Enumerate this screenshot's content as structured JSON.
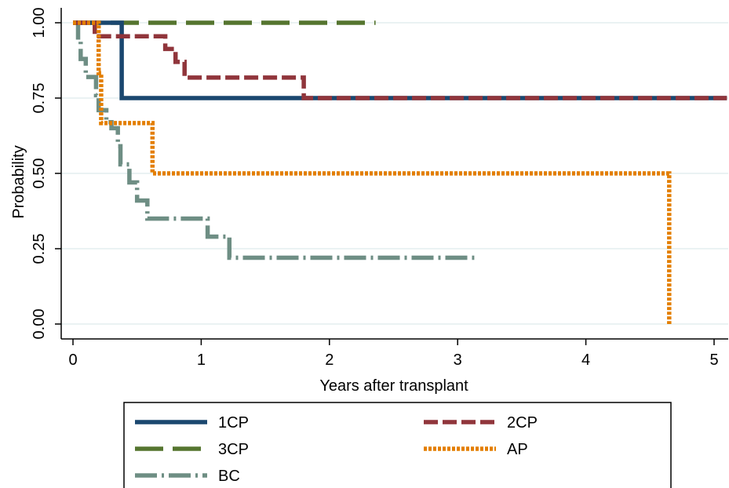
{
  "chart_data": {
    "type": "line",
    "subtype": "kaplan-meier step",
    "title": "",
    "xlabel": "Years after transplant",
    "ylabel": "Probability",
    "xlim": [
      0,
      5.1
    ],
    "ylim": [
      0,
      1
    ],
    "xticks": [
      0,
      1,
      2,
      3,
      4,
      5
    ],
    "yticks": [
      0.0,
      0.25,
      0.5,
      0.75,
      1.0
    ],
    "ytick_labels": [
      "0.00",
      "0.25",
      "0.50",
      "0.75",
      "1.00"
    ],
    "grid": "horizontal",
    "legend_position": "bottom",
    "series": [
      {
        "name": "1CP",
        "color": "#1a476f",
        "dash": "solid",
        "points": [
          [
            0,
            1.0
          ],
          [
            0.38,
            1.0
          ],
          [
            0.38,
            0.75
          ],
          [
            5.1,
            0.75
          ]
        ]
      },
      {
        "name": "2CP",
        "color": "#90353b",
        "dash": "dashed",
        "points": [
          [
            0,
            1.0
          ],
          [
            0.17,
            1.0
          ],
          [
            0.17,
            0.955
          ],
          [
            0.72,
            0.955
          ],
          [
            0.72,
            0.913
          ],
          [
            0.8,
            0.913
          ],
          [
            0.8,
            0.87
          ],
          [
            0.87,
            0.87
          ],
          [
            0.87,
            0.818
          ],
          [
            1.8,
            0.818
          ],
          [
            1.8,
            0.75
          ],
          [
            5.1,
            0.75
          ]
        ]
      },
      {
        "name": "3CP",
        "color": "#55752f",
        "dash": "long-dash",
        "points": [
          [
            0,
            1.0
          ],
          [
            2.36,
            1.0
          ]
        ]
      },
      {
        "name": "AP",
        "color": "#e37e00",
        "dash": "dotted",
        "points": [
          [
            0,
            1.0
          ],
          [
            0.2,
            1.0
          ],
          [
            0.2,
            0.833
          ],
          [
            0.22,
            0.833
          ],
          [
            0.22,
            0.667
          ],
          [
            0.62,
            0.667
          ],
          [
            0.62,
            0.5
          ],
          [
            4.65,
            0.5
          ],
          [
            4.65,
            0.0
          ]
        ]
      },
      {
        "name": "BC",
        "color": "#6e8e84",
        "dash": "dash-dot",
        "points": [
          [
            0,
            1.0
          ],
          [
            0.04,
            1.0
          ],
          [
            0.04,
            0.94
          ],
          [
            0.06,
            0.94
          ],
          [
            0.06,
            0.88
          ],
          [
            0.1,
            0.88
          ],
          [
            0.1,
            0.82
          ],
          [
            0.18,
            0.82
          ],
          [
            0.18,
            0.76
          ],
          [
            0.2,
            0.76
          ],
          [
            0.2,
            0.71
          ],
          [
            0.26,
            0.71
          ],
          [
            0.26,
            0.67
          ],
          [
            0.3,
            0.67
          ],
          [
            0.3,
            0.65
          ],
          [
            0.35,
            0.65
          ],
          [
            0.35,
            0.59
          ],
          [
            0.37,
            0.59
          ],
          [
            0.37,
            0.53
          ],
          [
            0.44,
            0.53
          ],
          [
            0.44,
            0.47
          ],
          [
            0.5,
            0.47
          ],
          [
            0.5,
            0.41
          ],
          [
            0.58,
            0.41
          ],
          [
            0.58,
            0.35
          ],
          [
            1.05,
            0.35
          ],
          [
            1.05,
            0.29
          ],
          [
            1.22,
            0.29
          ],
          [
            1.22,
            0.22
          ],
          [
            3.13,
            0.22
          ]
        ]
      }
    ]
  }
}
